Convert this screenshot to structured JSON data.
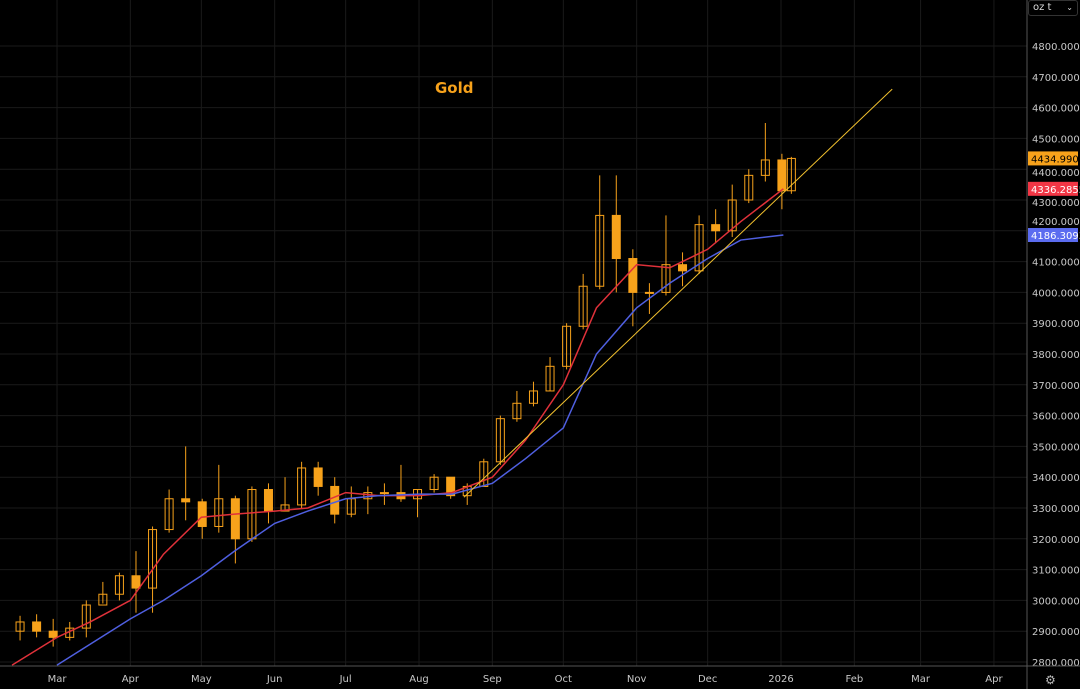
{
  "unit_selector": {
    "value": "oz t"
  },
  "chart_data": {
    "type": "candlestick",
    "title": "Gold",
    "ylim": [
      2780,
      4900
    ],
    "y_ticks": [
      "2800.0000",
      "2900.0000",
      "3000.0000",
      "3100.0000",
      "3200.0000",
      "3300.0000",
      "3400.0000",
      "3500.0000",
      "3600.0000",
      "3700.0000",
      "3800.0000",
      "3900.0000",
      "4000.0000",
      "4100.0000",
      "4200.0000",
      "4300.0000",
      "4400.0000",
      "4500.0000",
      "4600.0000",
      "4700.0000",
      "4800.0000"
    ],
    "x_ticks": [
      {
        "label": "Mar",
        "date": "2025-03-01"
      },
      {
        "label": "Apr",
        "date": "2025-04-01"
      },
      {
        "label": "May",
        "date": "2025-05-01"
      },
      {
        "label": "Jun",
        "date": "2025-06-01"
      },
      {
        "label": "Jul",
        "date": "2025-07-01"
      },
      {
        "label": "Aug",
        "date": "2025-08-01"
      },
      {
        "label": "Sep",
        "date": "2025-09-01"
      },
      {
        "label": "Oct",
        "date": "2025-10-01"
      },
      {
        "label": "Nov",
        "date": "2025-11-01"
      },
      {
        "label": "Dec",
        "date": "2025-12-01"
      },
      {
        "label": "2026",
        "date": "2026-01-01"
      },
      {
        "label": "Feb",
        "date": "2026-02-01"
      },
      {
        "label": "Mar",
        "date": "2026-03-01"
      },
      {
        "label": "Apr",
        "date": "2026-04-01"
      }
    ],
    "candles": [
      [
        "2025-02-10",
        2900,
        2950,
        2870,
        2930
      ],
      [
        "2025-02-17",
        2930,
        2955,
        2880,
        2900
      ],
      [
        "2025-02-24",
        2900,
        2940,
        2850,
        2880
      ],
      [
        "2025-03-03",
        2880,
        2930,
        2870,
        2910
      ],
      [
        "2025-03-10",
        2910,
        3000,
        2880,
        2985
      ],
      [
        "2025-03-17",
        2985,
        3060,
        2990,
        3020
      ],
      [
        "2025-03-24",
        3020,
        3090,
        3000,
        3080
      ],
      [
        "2025-03-31",
        3080,
        3160,
        2960,
        3040
      ],
      [
        "2025-04-07",
        3040,
        3240,
        2960,
        3230
      ],
      [
        "2025-04-14",
        3230,
        3360,
        3220,
        3330
      ],
      [
        "2025-04-21",
        3330,
        3500,
        3260,
        3320
      ],
      [
        "2025-04-28",
        3320,
        3330,
        3200,
        3240
      ],
      [
        "2025-05-05",
        3240,
        3440,
        3220,
        3330
      ],
      [
        "2025-05-12",
        3330,
        3340,
        3120,
        3200
      ],
      [
        "2025-05-19",
        3200,
        3370,
        3190,
        3360
      ],
      [
        "2025-05-26",
        3360,
        3380,
        3250,
        3290
      ],
      [
        "2025-06-02",
        3290,
        3400,
        3290,
        3310
      ],
      [
        "2025-06-09",
        3310,
        3450,
        3300,
        3430
      ],
      [
        "2025-06-16",
        3430,
        3450,
        3340,
        3370
      ],
      [
        "2025-06-23",
        3370,
        3400,
        3250,
        3280
      ],
      [
        "2025-06-30",
        3280,
        3370,
        3270,
        3330
      ],
      [
        "2025-07-07",
        3330,
        3370,
        3280,
        3350
      ],
      [
        "2025-07-14",
        3350,
        3380,
        3310,
        3350
      ],
      [
        "2025-07-21",
        3350,
        3440,
        3320,
        3330
      ],
      [
        "2025-07-28",
        3330,
        3360,
        3270,
        3360
      ],
      [
        "2025-08-04",
        3360,
        3410,
        3350,
        3400
      ],
      [
        "2025-08-11",
        3400,
        3400,
        3330,
        3340
      ],
      [
        "2025-08-18",
        3340,
        3380,
        3310,
        3370
      ],
      [
        "2025-08-25",
        3370,
        3460,
        3370,
        3450
      ],
      [
        "2025-09-01",
        3450,
        3600,
        3440,
        3590
      ],
      [
        "2025-09-08",
        3590,
        3680,
        3580,
        3640
      ],
      [
        "2025-09-15",
        3640,
        3710,
        3630,
        3680
      ],
      [
        "2025-09-22",
        3680,
        3790,
        3680,
        3760
      ],
      [
        "2025-09-29",
        3760,
        3900,
        3750,
        3890
      ],
      [
        "2025-10-06",
        3890,
        4060,
        3880,
        4020
      ],
      [
        "2025-10-13",
        4020,
        4380,
        4010,
        4250
      ],
      [
        "2025-10-20",
        4250,
        4380,
        4000,
        4110
      ],
      [
        "2025-10-27",
        4110,
        4140,
        3890,
        4000
      ],
      [
        "2025-11-03",
        4000,
        4030,
        3930,
        4000
      ],
      [
        "2025-11-10",
        4000,
        4250,
        3990,
        4090
      ],
      [
        "2025-11-17",
        4090,
        4130,
        4020,
        4070
      ],
      [
        "2025-11-24",
        4070,
        4250,
        4060,
        4220
      ],
      [
        "2025-12-01",
        4220,
        4270,
        4160,
        4200
      ],
      [
        "2025-12-08",
        4200,
        4350,
        4180,
        4300
      ],
      [
        "2025-12-15",
        4300,
        4400,
        4290,
        4380
      ],
      [
        "2025-12-22",
        4380,
        4550,
        4360,
        4430
      ],
      [
        "2025-12-29",
        4430,
        4450,
        4270,
        4330
      ],
      [
        "2026-01-02",
        4330,
        4440,
        4320,
        4435
      ]
    ],
    "series": [
      {
        "color": "#e0313a",
        "points": [
          [
            "2025-02-10",
            2790
          ],
          [
            "2025-03-01",
            2880
          ],
          [
            "2025-03-15",
            2930
          ],
          [
            "2025-04-01",
            3000
          ],
          [
            "2025-04-15",
            3150
          ],
          [
            "2025-05-01",
            3270
          ],
          [
            "2025-05-15",
            3280
          ],
          [
            "2025-06-01",
            3290
          ],
          [
            "2025-06-15",
            3300
          ],
          [
            "2025-07-01",
            3350
          ],
          [
            "2025-07-15",
            3340
          ],
          [
            "2025-08-01",
            3340
          ],
          [
            "2025-08-15",
            3350
          ],
          [
            "2025-09-01",
            3400
          ],
          [
            "2025-09-15",
            3520
          ],
          [
            "2025-10-01",
            3700
          ],
          [
            "2025-10-15",
            3950
          ],
          [
            "2025-11-01",
            4090
          ],
          [
            "2025-11-15",
            4080
          ],
          [
            "2025-12-01",
            4140
          ],
          [
            "2025-12-15",
            4230
          ],
          [
            "2026-01-02",
            4336.2855
          ]
        ]
      },
      {
        "color": "#4f5fe0",
        "points": [
          [
            "2025-03-01",
            2790
          ],
          [
            "2025-04-01",
            2940
          ],
          [
            "2025-04-15",
            3000
          ],
          [
            "2025-05-01",
            3080
          ],
          [
            "2025-05-15",
            3160
          ],
          [
            "2025-06-01",
            3250
          ],
          [
            "2025-06-15",
            3290
          ],
          [
            "2025-07-01",
            3330
          ],
          [
            "2025-07-15",
            3340
          ],
          [
            "2025-08-01",
            3345
          ],
          [
            "2025-08-15",
            3345
          ],
          [
            "2025-09-01",
            3380
          ],
          [
            "2025-09-15",
            3460
          ],
          [
            "2025-10-01",
            3560
          ],
          [
            "2025-10-15",
            3800
          ],
          [
            "2025-11-01",
            3950
          ],
          [
            "2025-11-15",
            4030
          ],
          [
            "2025-12-01",
            4110
          ],
          [
            "2025-12-15",
            4170
          ],
          [
            "2026-01-02",
            4186.3093
          ]
        ]
      }
    ],
    "trendline": {
      "color": "#f2c12e",
      "from": [
        "2025-08-20",
        3335
      ],
      "to": [
        "2026-02-17",
        4660
      ]
    },
    "price_labels": [
      {
        "value": "4434.9900",
        "price": 4434.99,
        "color": "#f7a21b",
        "text_color": "#000000"
      },
      {
        "value": "4336.2855",
        "price": 4336.2855,
        "color": "#f23645",
        "text_color": "#ffffff"
      },
      {
        "value": "4186.3093",
        "price": 4186.3093,
        "color": "#5b6cf0",
        "text_color": "#ffffff"
      }
    ],
    "up_color": "#f7a21b",
    "down_color": "#f7a21b",
    "grid": true
  }
}
